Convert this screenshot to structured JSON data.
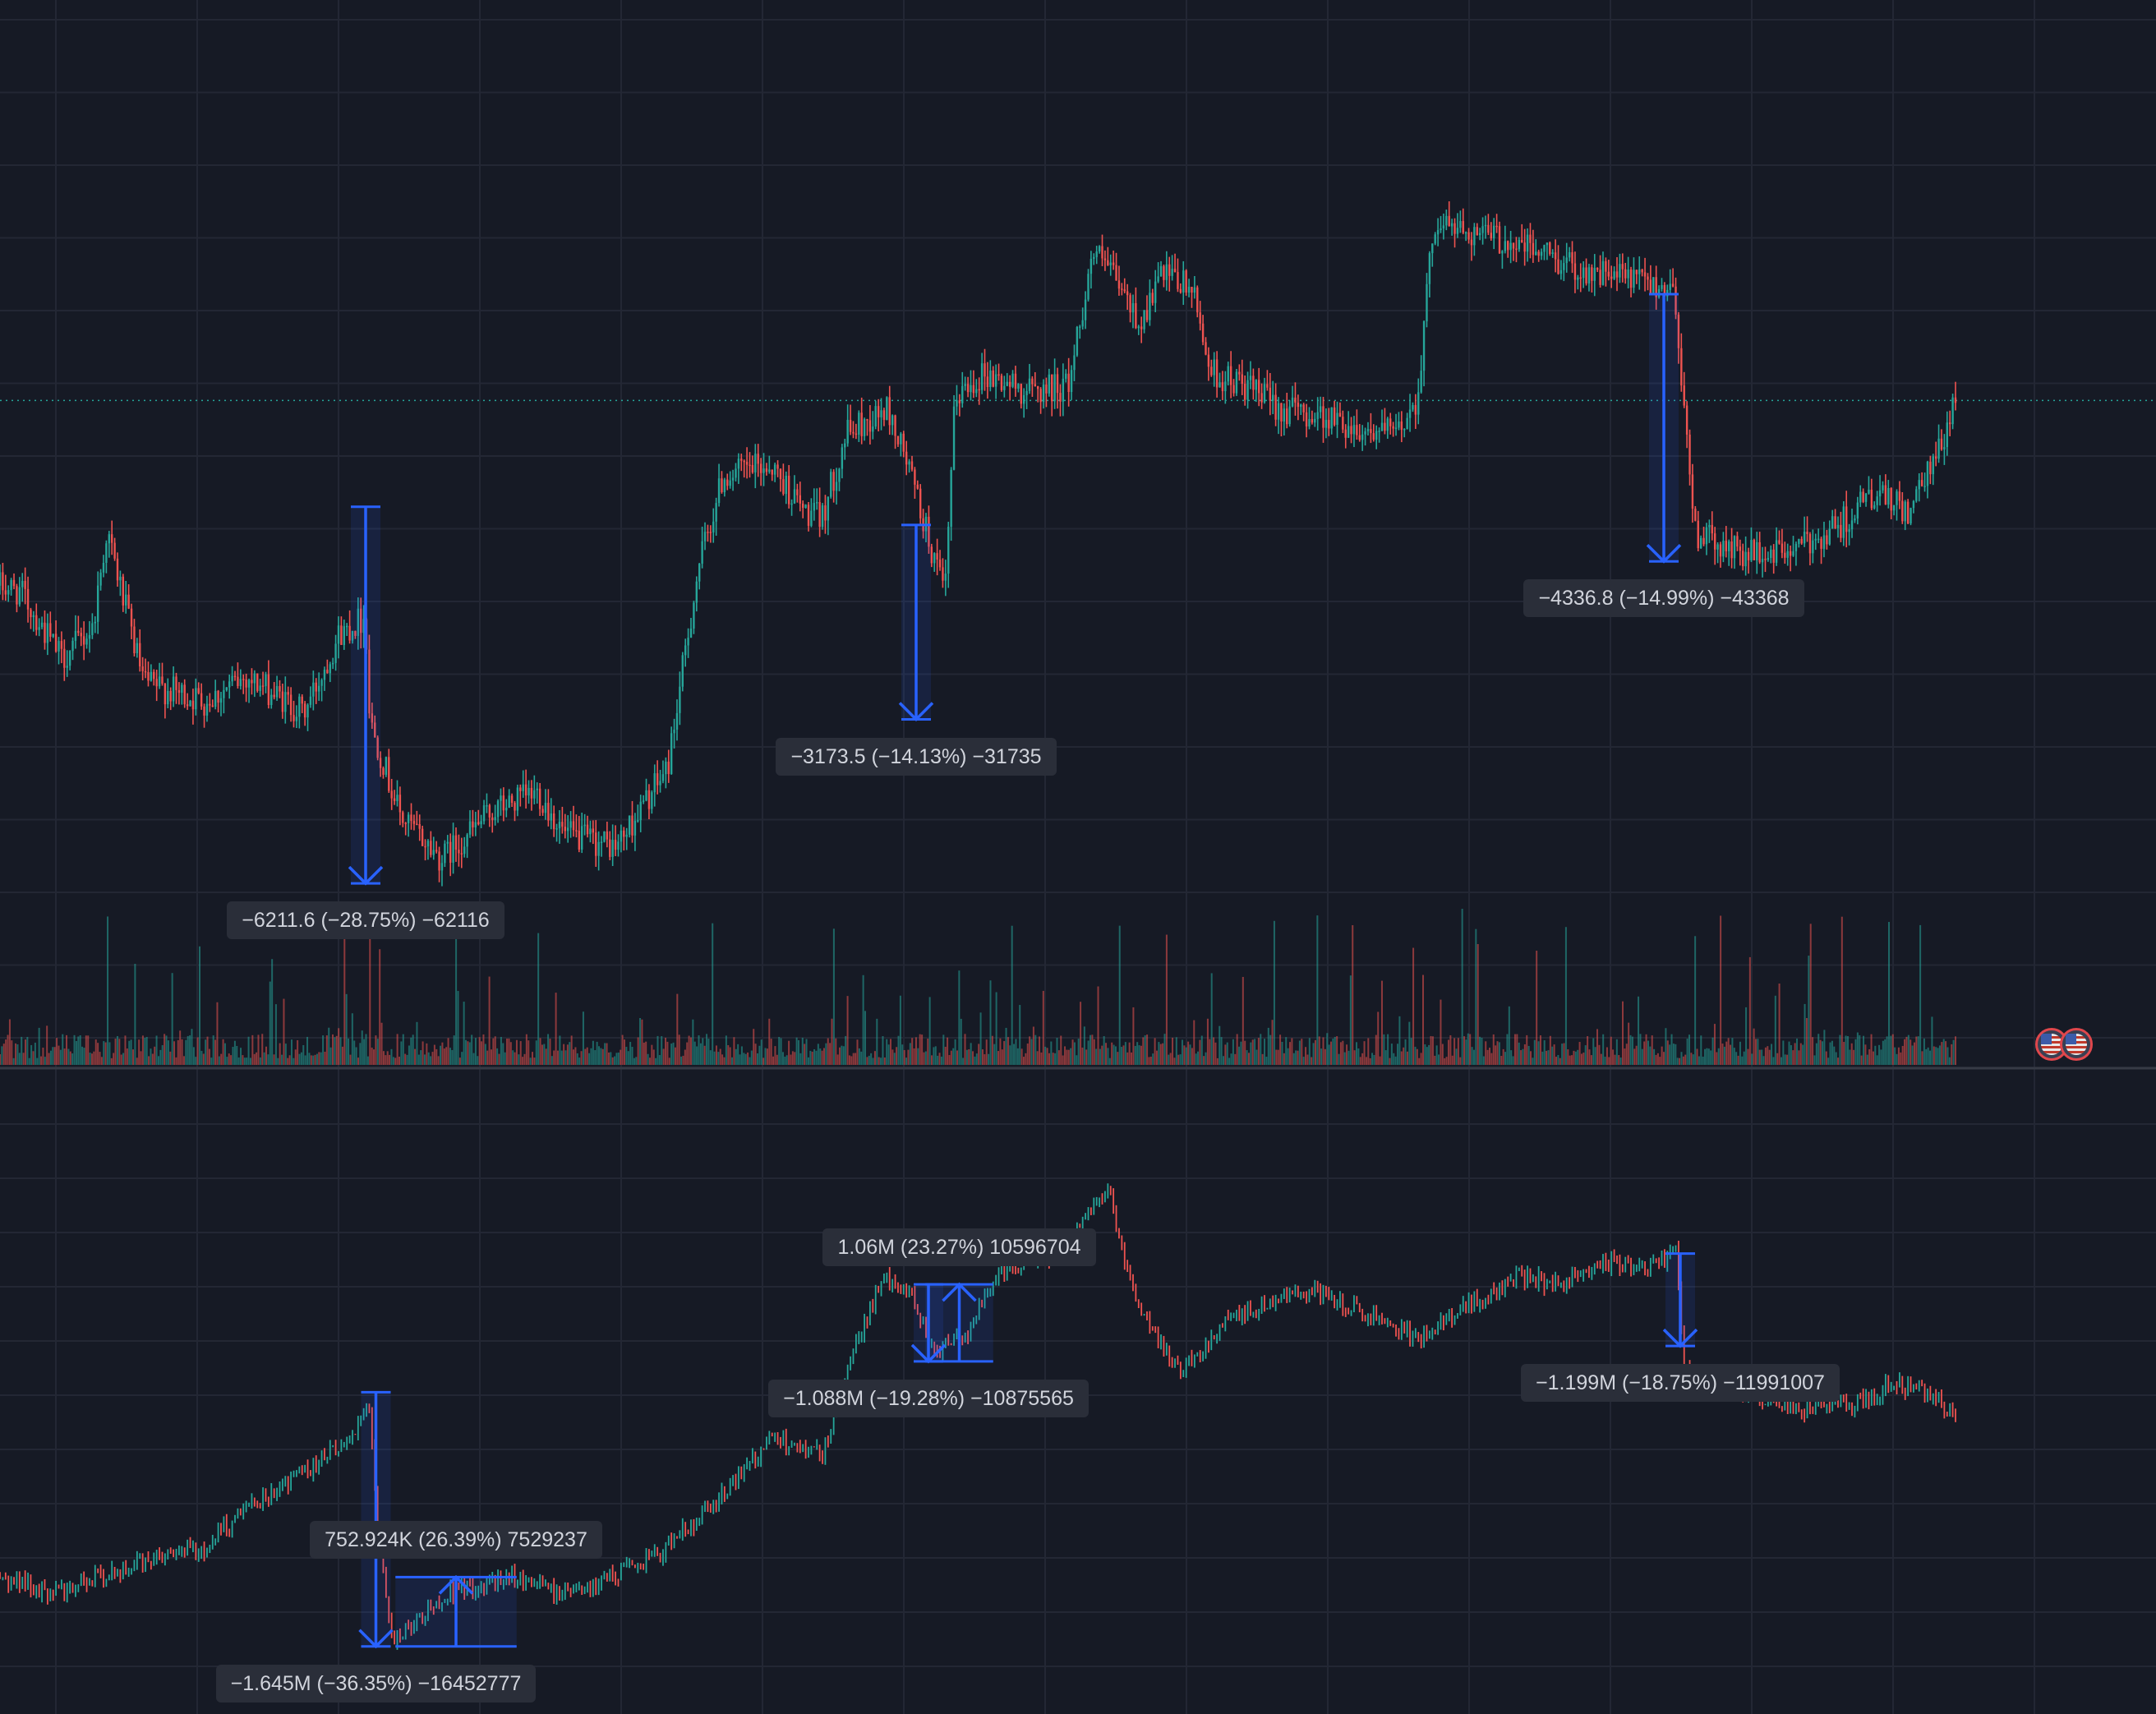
{
  "colors": {
    "background": "#161a25",
    "grid": "#232734",
    "up": "#26a69a",
    "down": "#ef5350",
    "measure": "#2962ff",
    "label_bg": "#2a2e39",
    "label_text": "#d1d4dc"
  },
  "chart_data": [
    {
      "type": "candlestick",
      "title": "",
      "grid": true,
      "legend": "none",
      "x_domain": [
        0,
        1000
      ],
      "ylim": [
        16500,
        33000
      ],
      "current_price_line": 26950,
      "anchors": [
        [
          0,
          23900
        ],
        [
          10,
          23800
        ],
        [
          30,
          22700
        ],
        [
          45,
          23200
        ],
        [
          52,
          24800
        ],
        [
          70,
          22300
        ],
        [
          100,
          22000
        ],
        [
          120,
          22400
        ],
        [
          148,
          21800
        ],
        [
          165,
          23100
        ],
        [
          178,
          23400
        ],
        [
          180,
          21700
        ],
        [
          195,
          20100
        ],
        [
          215,
          19400
        ],
        [
          240,
          20200
        ],
        [
          262,
          20500
        ],
        [
          275,
          19800
        ],
        [
          300,
          19600
        ],
        [
          325,
          20900
        ],
        [
          340,
          24200
        ],
        [
          352,
          25700
        ],
        [
          375,
          25900
        ],
        [
          392,
          25100
        ],
        [
          400,
          25000
        ],
        [
          412,
          26400
        ],
        [
          432,
          26800
        ],
        [
          442,
          25900
        ],
        [
          455,
          24300
        ],
        [
          460,
          23700
        ],
        [
          465,
          27000
        ],
        [
          478,
          27400
        ],
        [
          500,
          27100
        ],
        [
          520,
          27200
        ],
        [
          532,
          29400
        ],
        [
          540,
          29100
        ],
        [
          555,
          28200
        ],
        [
          565,
          29000
        ],
        [
          580,
          28800
        ],
        [
          590,
          27400
        ],
        [
          605,
          27200
        ],
        [
          625,
          26800
        ],
        [
          645,
          26700
        ],
        [
          660,
          26500
        ],
        [
          680,
          26400
        ],
        [
          690,
          27000
        ],
        [
          698,
          29900
        ],
        [
          720,
          29700
        ],
        [
          750,
          29400
        ],
        [
          770,
          29100
        ],
        [
          800,
          28900
        ],
        [
          815,
          28800
        ],
        [
          825,
          24800
        ],
        [
          840,
          24500
        ],
        [
          855,
          24400
        ],
        [
          875,
          24500
        ],
        [
          895,
          24900
        ],
        [
          912,
          25400
        ],
        [
          930,
          25100
        ],
        [
          945,
          26200
        ],
        [
          952,
          27000
        ]
      ],
      "volume_spike_positions": [
        52,
        66,
        84,
        97,
        132,
        168,
        180,
        185,
        222,
        238,
        262,
        330,
        347,
        406,
        420,
        438,
        453,
        467,
        482,
        485,
        493,
        508,
        535,
        545,
        568,
        590,
        605,
        620,
        641,
        658,
        673,
        688,
        693,
        712,
        719,
        748,
        762,
        825,
        838,
        852,
        866,
        881,
        897,
        920,
        935
      ],
      "measurements": [
        {
          "x": 178,
          "from": 25200,
          "to": 19000,
          "label": "−6211.6 (−28.75%) −62116"
        },
        {
          "x": 446,
          "from": 24900,
          "to": 21700,
          "label": "−3173.5 (−14.13%) −31735"
        },
        {
          "x": 810,
          "from": 28700,
          "to": 24300,
          "label": "−4336.8 (−14.99%) −43368"
        }
      ]
    },
    {
      "type": "line",
      "title": "",
      "grid": true,
      "legend": "none",
      "x_domain": [
        0,
        1000
      ],
      "ylim": [
        3000000,
        11000000
      ],
      "anchors": [
        [
          0,
          4500000
        ],
        [
          25,
          4300000
        ],
        [
          60,
          4600000
        ],
        [
          100,
          4900000
        ],
        [
          120,
          5400000
        ],
        [
          150,
          5900000
        ],
        [
          170,
          6300000
        ],
        [
          180,
          6700000
        ],
        [
          184,
          5200000
        ],
        [
          190,
          3700000
        ],
        [
          200,
          3900000
        ],
        [
          220,
          4300000
        ],
        [
          250,
          4500000
        ],
        [
          270,
          4300000
        ],
        [
          290,
          4400000
        ],
        [
          320,
          4800000
        ],
        [
          350,
          5500000
        ],
        [
          375,
          6300000
        ],
        [
          400,
          6100000
        ],
        [
          415,
          7400000
        ],
        [
          430,
          8400000
        ],
        [
          445,
          8100000
        ],
        [
          455,
          7400000
        ],
        [
          470,
          7600000
        ],
        [
          485,
          8400000
        ],
        [
          500,
          8600000
        ],
        [
          515,
          8600000
        ],
        [
          530,
          9300000
        ],
        [
          540,
          9500000
        ],
        [
          548,
          8500000
        ],
        [
          560,
          7700000
        ],
        [
          575,
          7200000
        ],
        [
          600,
          7900000
        ],
        [
          640,
          8200000
        ],
        [
          660,
          8000000
        ],
        [
          690,
          7600000
        ],
        [
          720,
          8100000
        ],
        [
          740,
          8400000
        ],
        [
          760,
          8300000
        ],
        [
          780,
          8600000
        ],
        [
          800,
          8500000
        ],
        [
          816,
          8700000
        ],
        [
          820,
          7200000
        ],
        [
          830,
          7000000
        ],
        [
          845,
          6900000
        ],
        [
          870,
          6700000
        ],
        [
          900,
          6700000
        ],
        [
          920,
          7000000
        ],
        [
          940,
          6900000
        ],
        [
          952,
          6600000
        ]
      ],
      "measurements": [
        {
          "x": 183,
          "from": 6900000,
          "to": 3600000,
          "label": "−1.645M (−36.35%) −16452777"
        },
        {
          "x": 222,
          "from": 3600000,
          "to": 4500000,
          "x_from": 193,
          "x_to": 252,
          "label": "752.924K (26.39%) 7529237"
        },
        {
          "x": 452,
          "from": 8300000,
          "to": 7300000,
          "label": "−1.088M (−19.28%) −10875565"
        },
        {
          "x": 467,
          "from": 7300000,
          "to": 8300000,
          "x_from": 450,
          "x_to": 483,
          "label": "1.06M (23.27%) 10596704"
        },
        {
          "x": 818,
          "from": 8700000,
          "to": 7500000,
          "label": "−1.199M (−18.75%) −11991007"
        }
      ]
    }
  ],
  "event_badges": [
    "us-flag-icon",
    "us-flag-icon"
  ]
}
